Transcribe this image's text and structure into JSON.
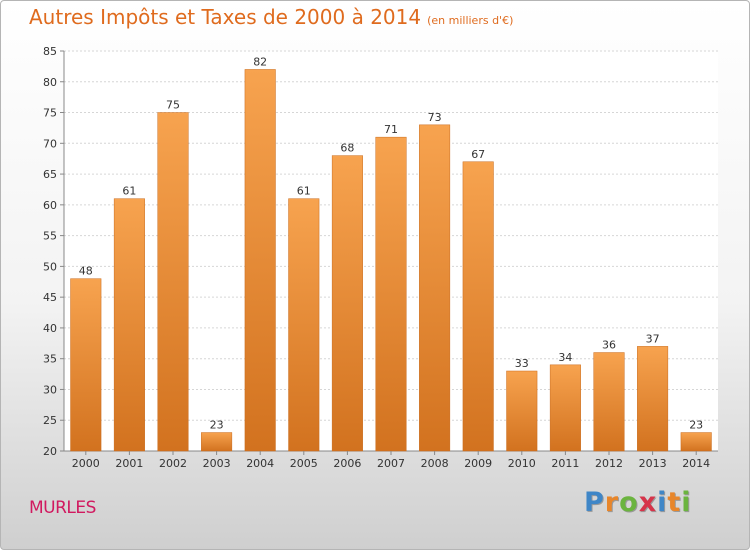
{
  "header": {
    "title": "Autres Impôts et Taxes de 2000 à 2014",
    "subtitle": "(en milliers d'€)"
  },
  "footer": {
    "town": "MURLES",
    "logo_letters": [
      {
        "char": "P",
        "color": "#3f86c7"
      },
      {
        "char": "r",
        "color": "#e8862a"
      },
      {
        "char": "o",
        "color": "#6bb43f"
      },
      {
        "char": "x",
        "color": "#d6344a"
      },
      {
        "char": "i",
        "color": "#3f86c7"
      },
      {
        "char": "t",
        "color": "#e8862a"
      },
      {
        "char": "i",
        "color": "#6bb43f"
      }
    ]
  },
  "chart_data": {
    "type": "bar",
    "categories": [
      "2000",
      "2001",
      "2002",
      "2003",
      "2004",
      "2005",
      "2006",
      "2007",
      "2008",
      "2009",
      "2010",
      "2011",
      "2012",
      "2013",
      "2014"
    ],
    "values": [
      48,
      61,
      75,
      23,
      82,
      61,
      68,
      71,
      73,
      67,
      33,
      34,
      36,
      37,
      23
    ],
    "ylim": [
      20,
      85
    ],
    "yticks": [
      20,
      25,
      30,
      35,
      40,
      45,
      50,
      55,
      60,
      65,
      70,
      75,
      80,
      85
    ],
    "grid": true,
    "bar_color_top": "#f7a34f",
    "bar_color_bottom": "#d2721f"
  }
}
